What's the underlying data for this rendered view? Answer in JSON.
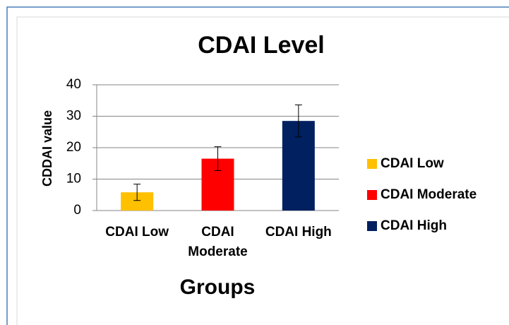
{
  "chart_data": {
    "type": "bar",
    "title": "CDAI Level",
    "x_label": "Groups",
    "y_label": "CDDAI value",
    "categories": [
      "CDAI Low",
      "CDAI Moderate",
      "CDAI High"
    ],
    "values": [
      5.8,
      16.5,
      28.5
    ],
    "errors": [
      2.6,
      3.8,
      5.1
    ],
    "colors": [
      "#ffc000",
      "#ff0000",
      "#002060"
    ],
    "ylim": [
      0,
      40
    ],
    "yticks": [
      0,
      10,
      20,
      30,
      40
    ],
    "grid": true,
    "legend": "right"
  }
}
